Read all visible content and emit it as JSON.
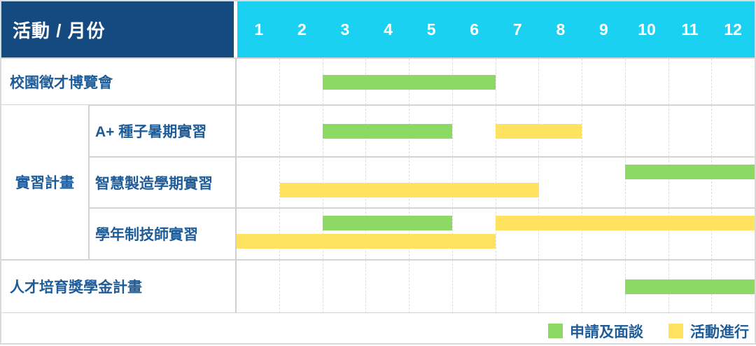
{
  "header": {
    "activity_month_label": "活動 / 月份",
    "months": [
      "1",
      "2",
      "3",
      "4",
      "5",
      "6",
      "7",
      "8",
      "9",
      "10",
      "11",
      "12"
    ]
  },
  "colors": {
    "header_navy": "#154A80",
    "header_cyan": "#1BD1F1",
    "label_text": "#1D5C99",
    "green": "#8CD964",
    "yellow": "#FFE25F"
  },
  "legend": [
    {
      "label": "申請及面談",
      "color": "#8CD964"
    },
    {
      "label": "活動進行",
      "color": "#FFE25F"
    }
  ],
  "chart_data": {
    "type": "gantt",
    "title": "活動 / 月份",
    "x_axis": {
      "label": "月份",
      "ticks": [
        "1",
        "2",
        "3",
        "4",
        "5",
        "6",
        "7",
        "8",
        "9",
        "10",
        "11",
        "12"
      ],
      "range": [
        1,
        12
      ]
    },
    "legend_position": "bottom-right",
    "rows": [
      {
        "group": null,
        "label": "校園徵才博覽會",
        "lanes": [
          [
            {
              "type": "申請及面談",
              "start": 3,
              "end": 6
            }
          ]
        ]
      },
      {
        "group": "實習計畫",
        "label": "A+ 種子暑期實習",
        "lanes": [
          [
            {
              "type": "申請及面談",
              "start": 3,
              "end": 5
            },
            {
              "type": "活動進行",
              "start": 7,
              "end": 8
            }
          ]
        ]
      },
      {
        "group": "實習計畫",
        "label": "智慧製造學期實習",
        "lanes": [
          [
            {
              "type": "申請及面談",
              "start": 10,
              "end": 12
            }
          ],
          [
            {
              "type": "活動進行",
              "start": 2,
              "end": 7
            }
          ]
        ]
      },
      {
        "group": "實習計畫",
        "label": "學年制技師實習",
        "lanes": [
          [
            {
              "type": "申請及面談",
              "start": 3,
              "end": 5
            },
            {
              "type": "活動進行",
              "start": 7,
              "end": 12
            }
          ],
          [
            {
              "type": "活動進行",
              "start": 1,
              "end": 6
            }
          ]
        ]
      },
      {
        "group": null,
        "label": "人才培育獎學金計畫",
        "lanes": [
          [
            {
              "type": "申請及面談",
              "start": 10,
              "end": 12
            }
          ]
        ]
      }
    ]
  }
}
